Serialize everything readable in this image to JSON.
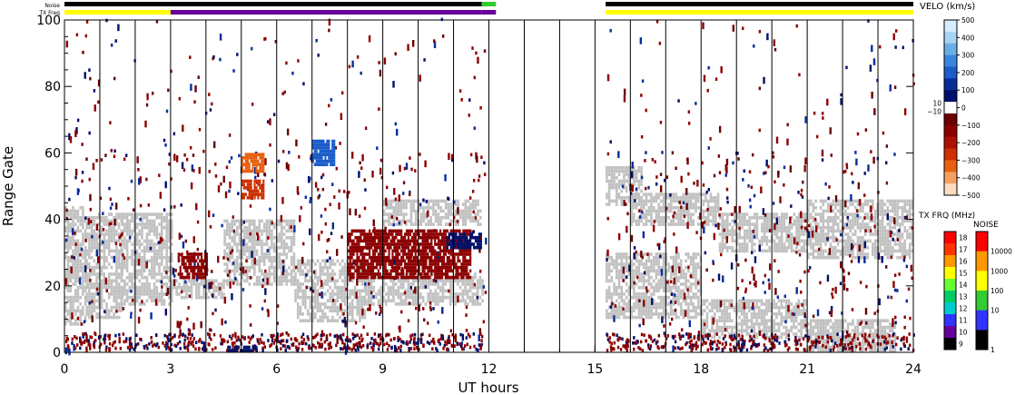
{
  "chart_data": {
    "type": "heatmap",
    "title": "",
    "xlabel": "UT hours",
    "ylabel": "Range Gate",
    "xlim": [
      0,
      24
    ],
    "ylim": [
      0,
      100
    ],
    "x_ticks": [
      "0",
      "3",
      "6",
      "9",
      "12",
      "15",
      "18",
      "21",
      "24"
    ],
    "y_ticks": [
      "0",
      "20",
      "40",
      "60",
      "80",
      "100"
    ],
    "vertical_lines_hours": [
      1,
      2,
      3,
      4,
      5,
      6,
      7,
      8,
      9,
      10,
      11,
      12,
      13,
      14,
      15,
      16,
      17,
      18,
      19,
      20,
      21,
      22,
      23
    ],
    "status_bars": {
      "noise_label": "Noise",
      "txfreq_label": "TX Freq",
      "noise_segments": [
        {
          "from": 0,
          "to": 11.8,
          "color": "#000000"
        },
        {
          "from": 11.8,
          "to": 12.2,
          "color": "#33cc33"
        },
        {
          "from": 15.3,
          "to": 24,
          "color": "#000000"
        }
      ],
      "txfreq_segments": [
        {
          "from": 0,
          "to": 3.0,
          "color": "#ffff00"
        },
        {
          "from": 3.0,
          "to": 11.8,
          "color": "#660099"
        },
        {
          "from": 11.8,
          "to": 12.2,
          "color": "#660099"
        },
        {
          "from": 15.3,
          "to": 24,
          "color": "#ffff00"
        }
      ]
    },
    "velocity_colorbar": {
      "label": "VELO (km/s)",
      "ticks": [
        "500",
        "400",
        "300",
        "200",
        "100",
        "0",
        "−100",
        "−200",
        "−300",
        "−400",
        "−500"
      ],
      "inner_ticks": [
        "10",
        "−10"
      ],
      "colors_top_to_bottom": [
        "#d8ecff",
        "#a8d4f4",
        "#6aaee8",
        "#3a86dc",
        "#1a5cc8",
        "#0a2c9a",
        "#00106a",
        "#ffffff",
        "#6a0000",
        "#8c0000",
        "#b01000",
        "#d03000",
        "#e86010",
        "#f4a060",
        "#fcdcc0"
      ]
    },
    "txfreq_colorbar": {
      "label": "TX FRQ (MHz)",
      "ticks": [
        "18",
        "17",
        "16",
        "15",
        "14",
        "13",
        "12",
        "11",
        "10",
        "9"
      ],
      "colors_top_to_bottom": [
        "#ff0000",
        "#ff3300",
        "#ff9900",
        "#ffff00",
        "#66ff33",
        "#00cc66",
        "#00cccc",
        "#3333ff",
        "#660099",
        "#000000"
      ]
    },
    "noise_colorbar": {
      "label": "NOISE",
      "ticks": [
        "10000",
        "1000",
        "100",
        "10",
        "1"
      ],
      "colors_top_to_bottom": [
        "#ff0000",
        "#ff9900",
        "#ffff00",
        "#33cc33",
        "#3333ff",
        "#000000"
      ]
    },
    "ground_scatter_color": "#c0c0c0",
    "ground_scatter_regions": [
      {
        "t0": 0.0,
        "t1": 0.6,
        "g0": 8,
        "g1": 44
      },
      {
        "t0": 0.6,
        "t1": 1.6,
        "g0": 10,
        "g1": 42
      },
      {
        "t0": 1.6,
        "t1": 3.0,
        "g0": 14,
        "g1": 42
      },
      {
        "t0": 3.0,
        "t1": 4.5,
        "g0": 16,
        "g1": 22
      },
      {
        "t0": 4.5,
        "t1": 6.5,
        "g0": 20,
        "g1": 40
      },
      {
        "t0": 6.5,
        "t1": 8.5,
        "g0": 9,
        "g1": 28
      },
      {
        "t0": 8.5,
        "t1": 11.8,
        "g0": 14,
        "g1": 24
      },
      {
        "t0": 9.0,
        "t1": 11.8,
        "g0": 38,
        "g1": 46
      },
      {
        "t0": 15.3,
        "t1": 16.3,
        "g0": 44,
        "g1": 56
      },
      {
        "t0": 16.0,
        "t1": 18.5,
        "g0": 38,
        "g1": 48
      },
      {
        "t0": 18.5,
        "t1": 21.0,
        "g0": 30,
        "g1": 42
      },
      {
        "t0": 21.0,
        "t1": 24.0,
        "g0": 28,
        "g1": 46
      },
      {
        "t0": 15.3,
        "t1": 18.0,
        "g0": 10,
        "g1": 30
      },
      {
        "t0": 18.0,
        "t1": 21.0,
        "g0": 4,
        "g1": 16
      },
      {
        "t0": 21.0,
        "t1": 23.5,
        "g0": 0,
        "g1": 10
      }
    ],
    "velocity_regions": [
      {
        "t0": 8.0,
        "t1": 11.5,
        "g0": 22,
        "g1": 37,
        "color": "#8c0000"
      },
      {
        "t0": 3.2,
        "t1": 4.0,
        "g0": 22,
        "g1": 30,
        "color": "#8c0000"
      },
      {
        "t0": 10.8,
        "t1": 11.8,
        "g0": 31,
        "g1": 36,
        "color": "#00106a"
      },
      {
        "t0": 5.0,
        "t1": 5.6,
        "g0": 46,
        "g1": 52,
        "color": "#d03000"
      },
      {
        "t0": 5.0,
        "t1": 5.6,
        "g0": 54,
        "g1": 60,
        "color": "#e86010"
      },
      {
        "t0": 7.0,
        "t1": 7.6,
        "g0": 56,
        "g1": 64,
        "color": "#1a5cc8"
      },
      {
        "t0": 4.6,
        "t1": 5.4,
        "g0": 0,
        "g1": 2,
        "color": "#00106a"
      }
    ],
    "data_gap_hours": [
      11.9,
      15.3
    ]
  }
}
